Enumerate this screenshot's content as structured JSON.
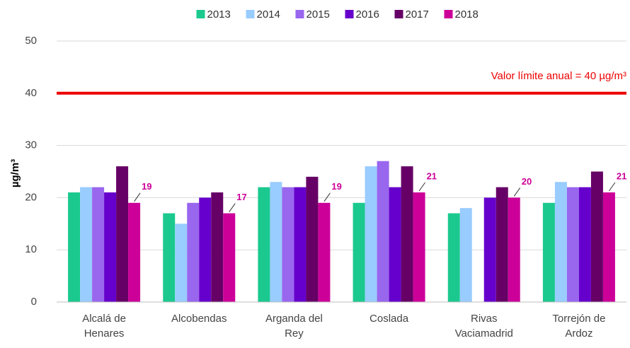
{
  "chart_data": {
    "type": "bar",
    "categories": [
      [
        "Alcalá de",
        "Henares"
      ],
      [
        "Alcobendas"
      ],
      [
        "Arganda del",
        "Rey"
      ],
      [
        "Coslada"
      ],
      [
        "Rivas",
        "Vaciamadrid"
      ],
      [
        "Torrejón de",
        "Ardoz"
      ]
    ],
    "series": [
      {
        "name": "2013",
        "color": "#1bc98e",
        "values": [
          21,
          17,
          22,
          19,
          17,
          19
        ]
      },
      {
        "name": "2014",
        "color": "#99ccff",
        "values": [
          22,
          15,
          23,
          26,
          18,
          23
        ]
      },
      {
        "name": "2015",
        "color": "#9966ee",
        "values": [
          22,
          19,
          22,
          27,
          null,
          22
        ]
      },
      {
        "name": "2016",
        "color": "#6600cc",
        "values": [
          21,
          20,
          22,
          22,
          20,
          22
        ]
      },
      {
        "name": "2017",
        "color": "#660066",
        "values": [
          26,
          21,
          24,
          26,
          22,
          25
        ]
      },
      {
        "name": "2018",
        "color": "#cc0099",
        "values": [
          19,
          17,
          19,
          21,
          20,
          21
        ]
      }
    ],
    "ylabel": "µg/m³",
    "ylim": [
      0,
      50
    ],
    "yticks": [
      0,
      10,
      20,
      30,
      40,
      50
    ],
    "grid": true,
    "legend": "top",
    "threshold": {
      "value": 40,
      "label": "Valor límite anual = 40 µg/m³",
      "color": "#ee0000"
    },
    "labeled_series": 5
  }
}
